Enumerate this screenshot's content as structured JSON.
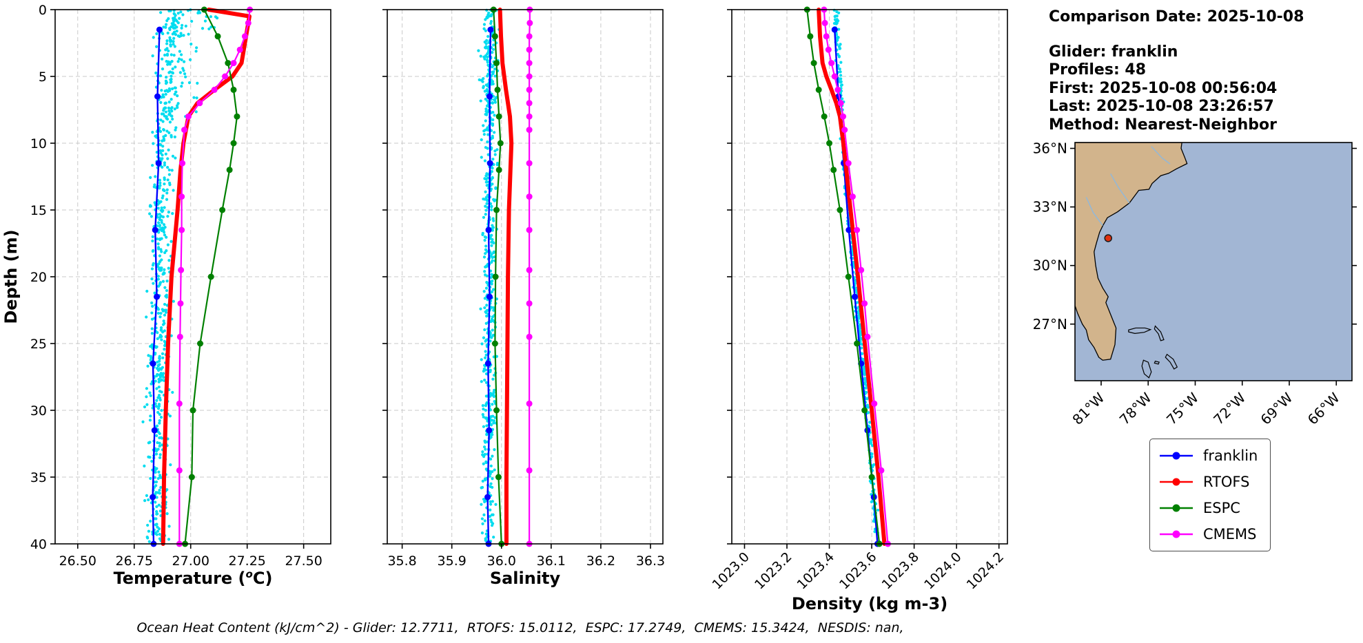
{
  "info_panel": {
    "comparison_date": "Comparison Date: 2025-10-08",
    "glider": "Glider: franklin",
    "profiles": "Profiles: 48",
    "first": "First: 2025-10-08 00:56:04",
    "last": "Last: 2025-10-08 23:26:57",
    "method": "Method: Nearest-Neighbor"
  },
  "footer_note": "Ocean Heat Content (kJ/cm^2) - Glider: 12.7711,  RTOFS: 15.0112,  ESPC: 17.2749,  CMEMS: 15.3424,  NESDIS: nan,",
  "legend": {
    "items": [
      {
        "label": "franklin",
        "color": "#0000ff"
      },
      {
        "label": "RTOFS",
        "color": "#ff0000"
      },
      {
        "label": "ESPC",
        "color": "#008000"
      },
      {
        "label": "CMEMS",
        "color": "#ff00ff"
      }
    ]
  },
  "chart_data": [
    {
      "id": "temperature",
      "type": "line",
      "xlabel": [
        {
          "t": "Temperature ("
        },
        {
          "t": "o",
          "sup": true
        },
        {
          "t": "C)"
        }
      ],
      "ylabel": "Depth (m)",
      "xlim": [
        26.4,
        27.62
      ],
      "ylim": [
        0,
        40
      ],
      "xticks": [
        "26.50",
        "26.75",
        "27.00",
        "27.25",
        "27.50"
      ],
      "yticks": [
        0,
        5,
        10,
        15,
        20,
        25,
        30,
        35,
        40
      ],
      "xtick_rotate": false,
      "show_ylabels": true,
      "grid": true,
      "scatter": {
        "name": "glider-raw-points",
        "color": "#00dcef",
        "count": 620,
        "spread": 0.075,
        "seed": 42,
        "center": [
          [
            0,
            26.93
          ],
          [
            5,
            26.905
          ],
          [
            10,
            26.875
          ],
          [
            25,
            26.86
          ],
          [
            40,
            26.85
          ]
        ],
        "extra": [
          {
            "count": 30,
            "depth": [
              0,
              1.6
            ],
            "x": [
              26.88,
              27.12
            ]
          },
          {
            "count": 45,
            "depth": [
              1.5,
              8
            ],
            "x": [
              26.83,
              27.03
            ]
          }
        ]
      },
      "series": [
        {
          "name": "franklin",
          "color": "#0000ff",
          "lw": 2.4,
          "ms": 4.5,
          "depths": [
            1.5,
            6.5,
            11.5,
            16.5,
            21.5,
            26.5,
            31.5,
            36.5,
            40
          ],
          "values": [
            26.862,
            26.853,
            26.858,
            26.843,
            26.85,
            26.833,
            26.84,
            26.832,
            26.836
          ]
        },
        {
          "name": "RTOFS",
          "color": "#ff0000",
          "lw": 6,
          "ms": 0,
          "depths": [
            0,
            0.5,
            2,
            4,
            5,
            6,
            7,
            8,
            10,
            12,
            15,
            20,
            25,
            30,
            35,
            40
          ],
          "values": [
            27.08,
            27.26,
            27.245,
            27.225,
            27.185,
            27.105,
            27.03,
            26.99,
            26.968,
            26.955,
            26.942,
            26.915,
            26.9,
            26.89,
            26.882,
            26.878
          ]
        },
        {
          "name": "ESPC",
          "color": "#008000",
          "lw": 2.2,
          "ms": 4.5,
          "depths": [
            0,
            2,
            4,
            6,
            8,
            10,
            12,
            15,
            20,
            25,
            30,
            35,
            40
          ],
          "values": [
            27.06,
            27.12,
            27.165,
            27.19,
            27.205,
            27.19,
            27.172,
            27.14,
            27.09,
            27.042,
            27.01,
            27.005,
            26.975
          ]
        },
        {
          "name": "CMEMS",
          "color": "#ff00ff",
          "lw": 2.2,
          "ms": 4.5,
          "depths": [
            0,
            1,
            2,
            3,
            4,
            5,
            6,
            7,
            8,
            9,
            11.5,
            14,
            16.5,
            19.5,
            22,
            24.5,
            29.5,
            34.5,
            40
          ],
          "values": [
            27.262,
            27.255,
            27.24,
            27.218,
            27.19,
            27.152,
            27.105,
            27.04,
            26.99,
            26.972,
            26.963,
            26.96,
            26.96,
            26.957,
            26.955,
            26.953,
            26.95,
            26.95,
            26.95
          ]
        }
      ]
    },
    {
      "id": "salinity",
      "type": "line",
      "xlabel": [
        {
          "t": "Salinity"
        }
      ],
      "ylabel": "",
      "xlim": [
        35.77,
        36.325
      ],
      "ylim": [
        0,
        40
      ],
      "xticks": [
        "35.8",
        "35.9",
        "36.0",
        "36.1",
        "36.2",
        "36.3"
      ],
      "yticks": [
        0,
        5,
        10,
        15,
        20,
        25,
        30,
        35,
        40
      ],
      "xtick_rotate": false,
      "show_ylabels": false,
      "grid": true,
      "scatter": {
        "name": "glider-raw-points",
        "color": "#00dcef",
        "count": 560,
        "spread": 0.02,
        "seed": 7,
        "center": [
          [
            0,
            35.976
          ],
          [
            40,
            35.974
          ]
        ],
        "extra": [
          {
            "count": 16,
            "depth": [
              0,
              10
            ],
            "x": [
              35.95,
              36.01
            ]
          }
        ]
      },
      "series": [
        {
          "name": "franklin",
          "color": "#0000ff",
          "lw": 2.4,
          "ms": 4.5,
          "depths": [
            1.5,
            6.5,
            11.5,
            16.5,
            21.5,
            26.5,
            31.5,
            36.5,
            40
          ],
          "values": [
            35.978,
            35.976,
            35.977,
            35.974,
            35.976,
            35.973,
            35.975,
            35.972,
            35.974
          ]
        },
        {
          "name": "RTOFS",
          "color": "#ff0000",
          "lw": 6,
          "ms": 0,
          "depths": [
            0,
            2,
            4,
            6,
            8,
            10,
            12,
            15,
            20,
            25,
            30,
            35,
            40
          ],
          "values": [
            35.997,
            35.999,
            36.002,
            36.009,
            36.017,
            36.02,
            36.018,
            36.015,
            36.013,
            36.012,
            36.011,
            36.01,
            36.01
          ]
        },
        {
          "name": "ESPC",
          "color": "#008000",
          "lw": 2.2,
          "ms": 4.5,
          "depths": [
            0,
            2,
            4,
            6,
            8,
            10,
            12,
            15,
            20,
            25,
            30,
            35,
            40
          ],
          "values": [
            35.984,
            35.987,
            35.99,
            35.992,
            35.995,
            35.998,
            35.995,
            35.99,
            35.988,
            35.987,
            35.99,
            35.994,
            36.0
          ]
        },
        {
          "name": "CMEMS",
          "color": "#ff00ff",
          "lw": 2.2,
          "ms": 4.5,
          "depths": [
            0,
            1,
            2,
            3,
            4,
            5,
            6,
            7,
            8,
            9,
            11.5,
            14,
            16.5,
            19.5,
            22,
            24.5,
            29.5,
            34.5,
            40
          ],
          "values": [
            36.057,
            36.057,
            36.056,
            36.056,
            36.056,
            36.056,
            36.056,
            36.056,
            36.056,
            36.056,
            36.056,
            36.056,
            36.056,
            36.056,
            36.056,
            36.056,
            36.056,
            36.056,
            36.056
          ]
        }
      ]
    },
    {
      "id": "density",
      "type": "line",
      "xlabel": [
        {
          "t": "Density (kg m-3)"
        }
      ],
      "ylabel": "",
      "xlim": [
        1022.94,
        1024.24
      ],
      "ylim": [
        0,
        40
      ],
      "xticks": [
        "1023.0",
        "1023.2",
        "1023.4",
        "1023.6",
        "1023.8",
        "1024.0",
        "1024.2"
      ],
      "yticks": [
        0,
        5,
        10,
        15,
        20,
        25,
        30,
        35,
        40
      ],
      "xtick_rotate": true,
      "show_ylabels": false,
      "grid": true,
      "scatter": {
        "name": "glider-raw-points",
        "color": "#00dcef",
        "count": 420,
        "spread": 0.018,
        "seed": 99,
        "center": [
          [
            0,
            1023.43
          ],
          [
            10,
            1023.465
          ],
          [
            20,
            1023.52
          ],
          [
            30,
            1023.578
          ],
          [
            40,
            1023.628
          ]
        ],
        "extra": []
      },
      "series": [
        {
          "name": "franklin",
          "color": "#0000ff",
          "lw": 2.4,
          "ms": 4.5,
          "depths": [
            1.5,
            6.5,
            11.5,
            16.5,
            21.5,
            26.5,
            31.5,
            36.5,
            40
          ],
          "values": [
            1023.425,
            1023.443,
            1023.468,
            1023.492,
            1023.52,
            1023.55,
            1023.58,
            1023.61,
            1023.627
          ]
        },
        {
          "name": "RTOFS",
          "color": "#ff0000",
          "lw": 6,
          "ms": 0,
          "depths": [
            0,
            2,
            4,
            5,
            6,
            7,
            8,
            10,
            12,
            15,
            20,
            25,
            30,
            35,
            40
          ],
          "values": [
            1023.35,
            1023.356,
            1023.368,
            1023.386,
            1023.41,
            1023.433,
            1023.45,
            1023.466,
            1023.48,
            1023.5,
            1023.535,
            1023.567,
            1023.6,
            1023.632,
            1023.66
          ]
        },
        {
          "name": "ESPC",
          "color": "#008000",
          "lw": 2.2,
          "ms": 4.5,
          "depths": [
            0,
            2,
            4,
            6,
            8,
            10,
            12,
            15,
            20,
            25,
            30,
            35,
            40
          ],
          "values": [
            1023.295,
            1023.31,
            1023.327,
            1023.35,
            1023.376,
            1023.4,
            1023.42,
            1023.45,
            1023.49,
            1023.53,
            1023.566,
            1023.6,
            1023.636
          ]
        },
        {
          "name": "CMEMS",
          "color": "#ff00ff",
          "lw": 2.2,
          "ms": 4.5,
          "depths": [
            0,
            1,
            2,
            3,
            4,
            5,
            6,
            7,
            8,
            9,
            11.5,
            14,
            16.5,
            19.5,
            22,
            24.5,
            29.5,
            34.5,
            40
          ],
          "values": [
            1023.375,
            1023.379,
            1023.386,
            1023.396,
            1023.41,
            1023.425,
            1023.44,
            1023.454,
            1023.465,
            1023.472,
            1023.49,
            1023.51,
            1023.53,
            1023.55,
            1023.566,
            1023.58,
            1023.612,
            1023.645,
            1023.676
          ]
        }
      ]
    }
  ],
  "map": {
    "lon_range": [
      -82.67,
      -65.0
    ],
    "lat_range": [
      24.1,
      36.3
    ],
    "ocean_color": "#a2b6d4",
    "land_color": "#d2b48c",
    "river_color": "#8fb8dc",
    "lat_ticks": [
      {
        "lat": 36,
        "label": "36°N"
      },
      {
        "lat": 33,
        "label": "33°N"
      },
      {
        "lat": 30,
        "label": "30°N"
      },
      {
        "lat": 27,
        "label": "27°N"
      }
    ],
    "lon_ticks": [
      {
        "lon": -81,
        "label": "81°W"
      },
      {
        "lon": -78,
        "label": "78°W"
      },
      {
        "lon": -75,
        "label": "75°W"
      },
      {
        "lon": -72,
        "label": "72°W"
      },
      {
        "lon": -69,
        "label": "69°W"
      },
      {
        "lon": -66,
        "label": "66°W"
      }
    ],
    "glider_marker": {
      "lon": -80.55,
      "lat": 31.4,
      "color": "#e03010",
      "edge": "#1a1a1a"
    },
    "coast": [
      [
        -75.85,
        36.3
      ],
      [
        -75.9,
        36.0
      ],
      [
        -75.65,
        35.5
      ],
      [
        -75.52,
        35.22
      ],
      [
        -76.2,
        34.95
      ],
      [
        -76.7,
        34.72
      ],
      [
        -77.2,
        34.6
      ],
      [
        -77.75,
        34.2
      ],
      [
        -77.95,
        33.9
      ],
      [
        -78.6,
        33.85
      ],
      [
        -79.2,
        33.2
      ],
      [
        -79.95,
        32.75
      ],
      [
        -80.6,
        32.45
      ],
      [
        -80.9,
        32.03
      ],
      [
        -81.1,
        31.7
      ],
      [
        -81.3,
        31.15
      ],
      [
        -81.45,
        30.7
      ],
      [
        -81.35,
        30.0
      ],
      [
        -81.2,
        29.35
      ],
      [
        -80.9,
        28.85
      ],
      [
        -80.55,
        28.4
      ],
      [
        -80.7,
        28.1
      ],
      [
        -80.3,
        27.3
      ],
      [
        -80.05,
        26.8
      ],
      [
        -80.12,
        25.95
      ],
      [
        -80.4,
        25.2
      ],
      [
        -80.9,
        25.15
      ],
      [
        -81.15,
        25.3
      ],
      [
        -81.45,
        25.8
      ],
      [
        -81.8,
        26.2
      ],
      [
        -81.95,
        26.7
      ],
      [
        -82.2,
        27.0
      ],
      [
        -82.5,
        27.55
      ],
      [
        -82.67,
        27.95
      ],
      [
        -82.67,
        36.3
      ]
    ],
    "islands": [
      [
        [
          -79.25,
          26.7
        ],
        [
          -78.8,
          26.8
        ],
        [
          -78.2,
          26.8
        ],
        [
          -77.85,
          26.72
        ],
        [
          -78.25,
          26.58
        ],
        [
          -78.85,
          26.52
        ],
        [
          -79.25,
          26.6
        ]
      ],
      [
        [
          -77.55,
          26.9
        ],
        [
          -77.2,
          26.6
        ],
        [
          -77.0,
          26.2
        ],
        [
          -77.2,
          26.15
        ],
        [
          -77.35,
          26.5
        ],
        [
          -77.6,
          26.75
        ]
      ],
      [
        [
          -78.3,
          25.15
        ],
        [
          -78.0,
          25.05
        ],
        [
          -77.8,
          24.55
        ],
        [
          -77.95,
          24.25
        ],
        [
          -78.25,
          24.45
        ],
        [
          -78.4,
          24.85
        ]
      ],
      [
        [
          -76.8,
          25.45
        ],
        [
          -76.4,
          25.2
        ],
        [
          -76.15,
          24.8
        ],
        [
          -76.35,
          24.7
        ],
        [
          -76.6,
          25.05
        ],
        [
          -76.9,
          25.3
        ]
      ],
      [
        [
          -77.55,
          25.1
        ],
        [
          -77.3,
          25.05
        ],
        [
          -77.35,
          24.95
        ],
        [
          -77.6,
          25.0
        ]
      ]
    ],
    "rivers": [
      [
        [
          -81.95,
          33.5
        ],
        [
          -81.5,
          32.7
        ],
        [
          -80.9,
          32.05
        ]
      ],
      [
        [
          -80.4,
          34.7
        ],
        [
          -79.9,
          34.0
        ],
        [
          -79.2,
          33.2
        ]
      ],
      [
        [
          -77.8,
          36.1
        ],
        [
          -77.1,
          35.5
        ],
        [
          -76.6,
          35.2
        ]
      ]
    ]
  }
}
